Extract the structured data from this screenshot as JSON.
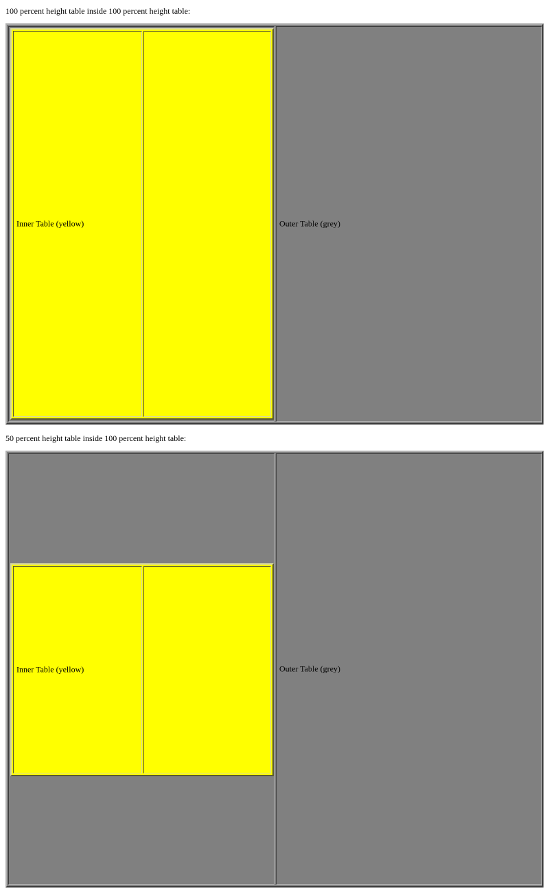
{
  "sections": [
    {
      "caption": "100 percent height table inside 100 percent height table:",
      "inner_label": "Inner Table (yellow)",
      "outer_label": "Outer Table (grey)"
    },
    {
      "caption": "50 percent height table inside 100 percent height table:",
      "inner_label": "Inner Table (yellow)",
      "outer_label": "Outer Table (grey)"
    }
  ],
  "colors": {
    "outer_table": "#808080",
    "inner_table": "#ffff00",
    "page_background": "#ffffff"
  }
}
